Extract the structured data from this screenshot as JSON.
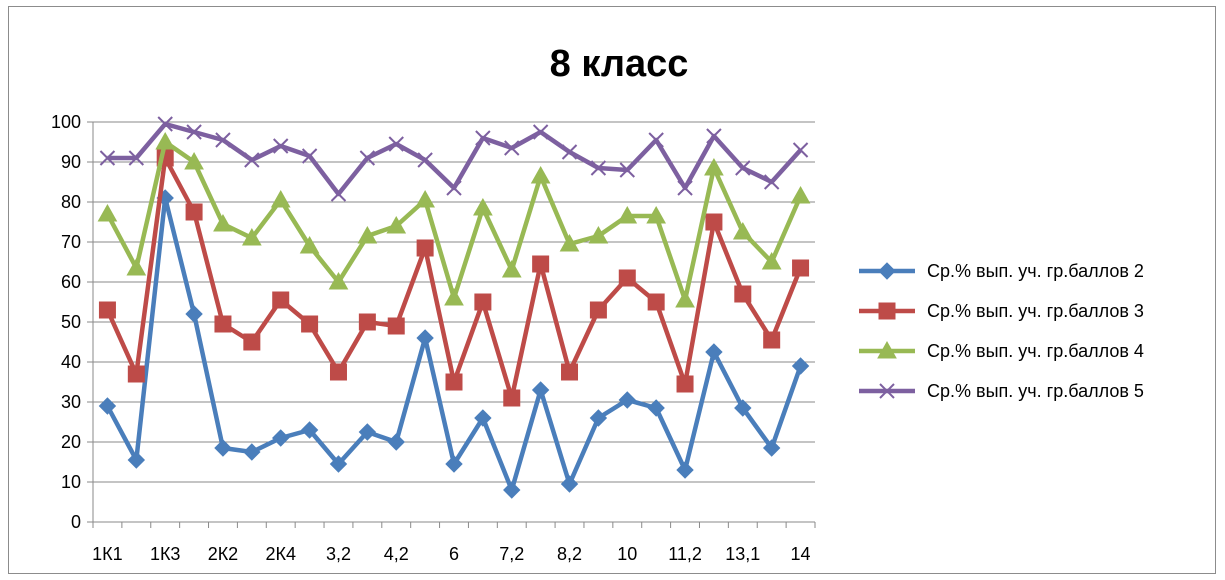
{
  "chart_data": {
    "type": "line",
    "title": "8 класс",
    "xlabel": "",
    "ylabel": "",
    "ylim": [
      0,
      100
    ],
    "yticks": [
      0,
      10,
      20,
      30,
      40,
      50,
      60,
      70,
      80,
      90,
      100
    ],
    "grid": "horizontal",
    "legend_position": "right",
    "x_tick_labels": [
      "1К1",
      "1К3",
      "2К2",
      "2К4",
      "3,2",
      "4,2",
      "6",
      "7,2",
      "8,2",
      "10",
      "11,2",
      "13,1",
      "14"
    ],
    "x_tick_label_positions": [
      0,
      2,
      4,
      6,
      8,
      10,
      12,
      14,
      16,
      18,
      20,
      22,
      24
    ],
    "series": [
      {
        "name": "Ср.% вып. уч. гр.баллов 2",
        "color": "#4a7ebb",
        "marker": "diamond",
        "values": [
          29,
          15.5,
          81,
          52,
          18.5,
          17.5,
          21,
          23,
          14.5,
          22.5,
          20,
          46,
          14.5,
          26,
          8,
          33,
          9.5,
          26,
          30.5,
          28.5,
          13,
          42.5,
          28.5,
          18.5,
          39
        ]
      },
      {
        "name": "Ср.% вып. уч. гр.баллов 3",
        "color": "#be4b48",
        "marker": "square",
        "values": [
          53,
          37,
          91,
          77.5,
          49.5,
          45,
          55.5,
          49.5,
          37.5,
          50,
          49,
          68.5,
          35,
          55,
          31,
          64.5,
          37.5,
          53,
          61,
          55,
          34.5,
          75,
          57,
          45.5,
          63.5
        ]
      },
      {
        "name": "Ср.% вып. уч. гр.баллов 4",
        "color": "#98b954",
        "marker": "triangle",
        "values": [
          77,
          63.5,
          95,
          90,
          74.5,
          71,
          80.5,
          69,
          60,
          71.5,
          74,
          80.5,
          56,
          78.5,
          63,
          86.5,
          69.5,
          71.5,
          76.5,
          76.5,
          55.5,
          88.5,
          72.5,
          65,
          81.5
        ]
      },
      {
        "name": "Ср.% вып. уч. гр.баллов 5",
        "color": "#7d60a0",
        "marker": "x",
        "values": [
          91,
          91,
          99.5,
          97.5,
          95.5,
          90.5,
          94,
          91.5,
          82,
          91,
          94.5,
          90.5,
          83.5,
          96,
          93.5,
          97.5,
          92.5,
          88.5,
          88,
          95.5,
          83.5,
          96.5,
          88.5,
          85,
          93
        ]
      }
    ]
  }
}
